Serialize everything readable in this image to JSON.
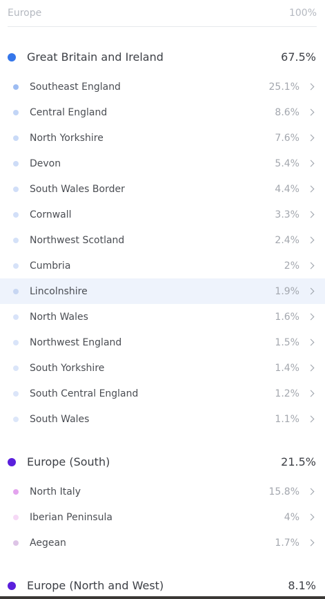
{
  "header": {
    "title": "Europe",
    "percent": "100%"
  },
  "groups": [
    {
      "name": "Great Britain and Ireland",
      "percent": "67.5%",
      "color": "#3576ea",
      "regions": [
        {
          "name": "Southeast England",
          "percent": "25.1%",
          "color": "#9dbcf2"
        },
        {
          "name": "Central England",
          "percent": "8.6%",
          "color": "#c2d5f6"
        },
        {
          "name": "North Yorkshire",
          "percent": "7.6%",
          "color": "#c9daf7"
        },
        {
          "name": "Devon",
          "percent": "5.4%",
          "color": "#cddcf7"
        },
        {
          "name": "South Wales Border",
          "percent": "4.4%",
          "color": "#d0def8"
        },
        {
          "name": "Cornwall",
          "percent": "3.3%",
          "color": "#d2dff8"
        },
        {
          "name": "Northwest Scotland",
          "percent": "2.4%",
          "color": "#d4e1f8"
        },
        {
          "name": "Cumbria",
          "percent": "2%",
          "color": "#d6e2f8"
        },
        {
          "name": "Lincolnshire",
          "percent": "1.9%",
          "color": "#c7d6f2",
          "highlighted": true
        },
        {
          "name": "North Wales",
          "percent": "1.6%",
          "color": "#d8e3f9"
        },
        {
          "name": "Northwest England",
          "percent": "1.5%",
          "color": "#d9e4f9"
        },
        {
          "name": "South Yorkshire",
          "percent": "1.4%",
          "color": "#dae5f9"
        },
        {
          "name": "South Central England",
          "percent": "1.2%",
          "color": "#dbe5f9"
        },
        {
          "name": "South Wales",
          "percent": "1.1%",
          "color": "#dce6f9"
        }
      ]
    },
    {
      "name": "Europe (South)",
      "percent": "21.5%",
      "color": "#5a1fdc",
      "regions": [
        {
          "name": "North Italy",
          "percent": "15.8%",
          "color": "#e3a3ee"
        },
        {
          "name": "Iberian Peninsula",
          "percent": "4%",
          "color": "#f6d9f6"
        },
        {
          "name": "Aegean",
          "percent": "1.7%",
          "color": "#ddc4e6"
        }
      ]
    },
    {
      "name": "Europe (North and West)",
      "percent": "8.1%",
      "color": "#5a1fdc",
      "regions": []
    }
  ]
}
